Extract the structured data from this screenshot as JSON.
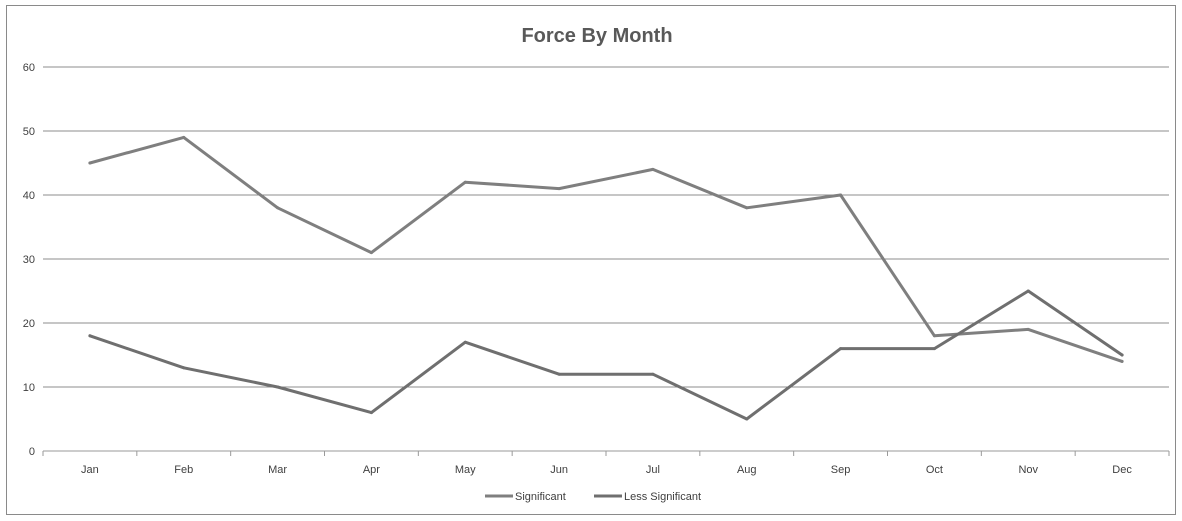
{
  "chart_data": {
    "type": "line",
    "title": "Force By Month",
    "xlabel": "",
    "ylabel": "",
    "categories": [
      "Jan",
      "Feb",
      "Mar",
      "Apr",
      "May",
      "Jun",
      "Jul",
      "Aug",
      "Sep",
      "Oct",
      "Nov",
      "Dec"
    ],
    "ylim": [
      0,
      60
    ],
    "yticks": [
      0,
      10,
      20,
      30,
      40,
      50,
      60
    ],
    "grid": true,
    "legend_position": "bottom",
    "series": [
      {
        "name": "Significant",
        "color": "#7f7f7f",
        "values": [
          45,
          49,
          38,
          31,
          42,
          41,
          44,
          38,
          40,
          18,
          19,
          14
        ]
      },
      {
        "name": "Less Significant",
        "color": "#6f6f6f",
        "values": [
          18,
          13,
          10,
          6,
          17,
          12,
          12,
          5,
          16,
          16,
          25,
          15
        ]
      }
    ]
  }
}
